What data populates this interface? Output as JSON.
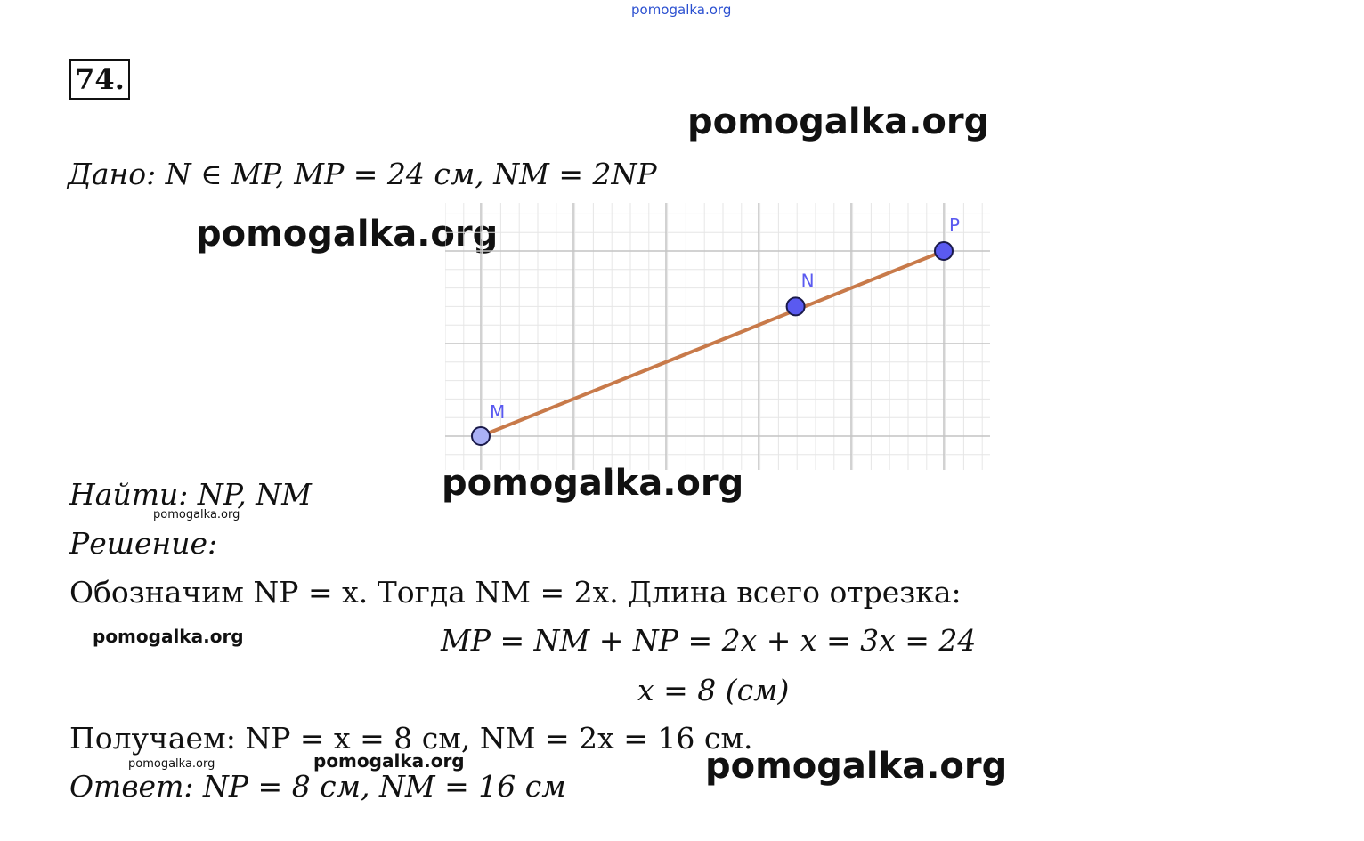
{
  "watermark": {
    "top": "pomogalka.org",
    "w1": "pomogalka.org",
    "w2": "pomogalka.org",
    "w3": "pomogalka.org",
    "w4": "pomogalka.org",
    "w5": "pomogalka.org",
    "w6": "pomogalka.org",
    "w7": "pomogalka.org",
    "w8": "pomogalka.org"
  },
  "problem_number": "74.",
  "given": "Дано: N ∈ MP,  MP = 24 см,  NM = 2NP",
  "figure": {
    "points": [
      {
        "label": "M",
        "x": 0,
        "y": 0
      },
      {
        "label": "N",
        "x": 3.4,
        "y": 1.4
      },
      {
        "label": "P",
        "x": 5,
        "y": 2
      }
    ],
    "line_color": "#c87a4a",
    "point_color": "#5a5af0",
    "grid": true
  },
  "find": "Найти: NP, NM",
  "solution_label": "Решение:",
  "step1": "Обозначим NP = x. Тогда NM = 2x. Длина всего отрезка:",
  "equation1": "MP = NM + NP = 2x + x = 3x = 24",
  "equation2": "x = 8 (см)",
  "result": "Получаем: NP = x = 8 см, NM = 2x = 16 см.",
  "answer": "Ответ: NP = 8 см,  NM = 16 см"
}
